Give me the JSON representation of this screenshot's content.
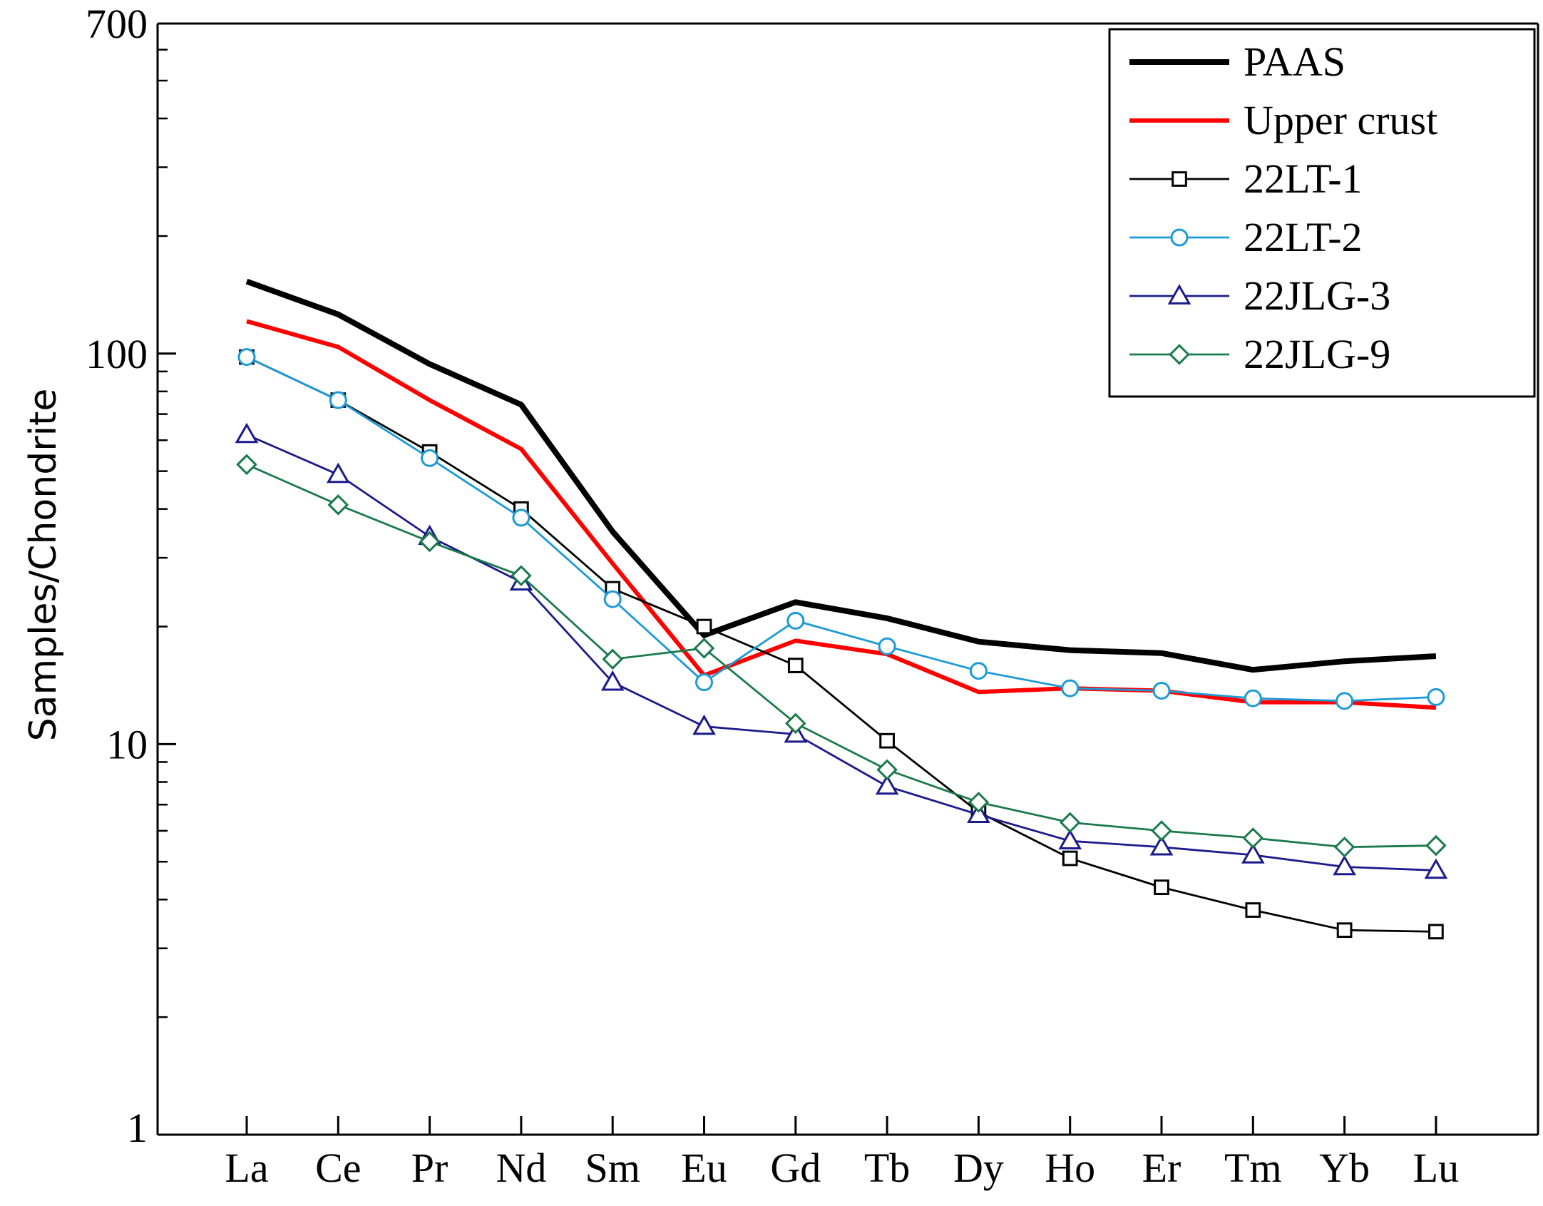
{
  "chart_data": {
    "type": "line",
    "title": "",
    "xlabel": "",
    "ylabel": "Samples/Chondrite",
    "yscale": "log",
    "ylim": [
      1,
      700
    ],
    "yticks": [
      1,
      10,
      100,
      700
    ],
    "ytick_labels": [
      "1",
      "10",
      "100",
      "700"
    ],
    "legend_position": "top-right",
    "categories": [
      "La",
      "Ce",
      "Pr",
      "Nd",
      "Sm",
      "Eu",
      "Gd",
      "Tb",
      "Dy",
      "Ho",
      "Er",
      "Tm",
      "Yb",
      "Lu"
    ],
    "series": [
      {
        "name": "PAAS",
        "color": "#000000",
        "weight": "heavy",
        "marker": "none",
        "values": [
          153,
          126,
          94,
          74,
          35,
          19,
          23.1,
          21,
          18.3,
          17.4,
          17.1,
          15.5,
          16.3,
          16.8
        ]
      },
      {
        "name": "Upper crust",
        "color": "#ff0000",
        "weight": "medium",
        "marker": "none",
        "values": [
          121,
          104,
          76,
          57,
          29,
          15,
          18.4,
          17,
          13.6,
          13.9,
          13.7,
          12.8,
          12.8,
          12.4
        ]
      },
      {
        "name": "22LT-1",
        "color": "#000000",
        "weight": "thin",
        "marker": "square",
        "values": [
          98,
          76,
          56,
          40,
          25,
          20,
          15.9,
          10.2,
          6.7,
          5.1,
          4.3,
          3.76,
          3.34,
          3.31
        ]
      },
      {
        "name": "22LT-2",
        "color": "#1c9ad6",
        "weight": "thin",
        "marker": "circle",
        "values": [
          98,
          76,
          54,
          38,
          23.5,
          14.4,
          20.7,
          17.8,
          15.4,
          13.9,
          13.7,
          13.1,
          12.9,
          13.2
        ]
      },
      {
        "name": "22JLG-3",
        "color": "#1a1a8c",
        "weight": "thin",
        "marker": "triangle",
        "values": [
          62,
          49,
          34,
          26,
          14.4,
          11.1,
          10.6,
          7.8,
          6.6,
          5.65,
          5.45,
          5.2,
          4.85,
          4.75
        ]
      },
      {
        "name": "22JLG-9",
        "color": "#1a7a4c",
        "weight": "thin",
        "marker": "diamond",
        "values": [
          52,
          41,
          33,
          27,
          16.5,
          17.6,
          11.3,
          8.6,
          7.1,
          6.3,
          6.0,
          5.75,
          5.45,
          5.5
        ]
      }
    ]
  }
}
